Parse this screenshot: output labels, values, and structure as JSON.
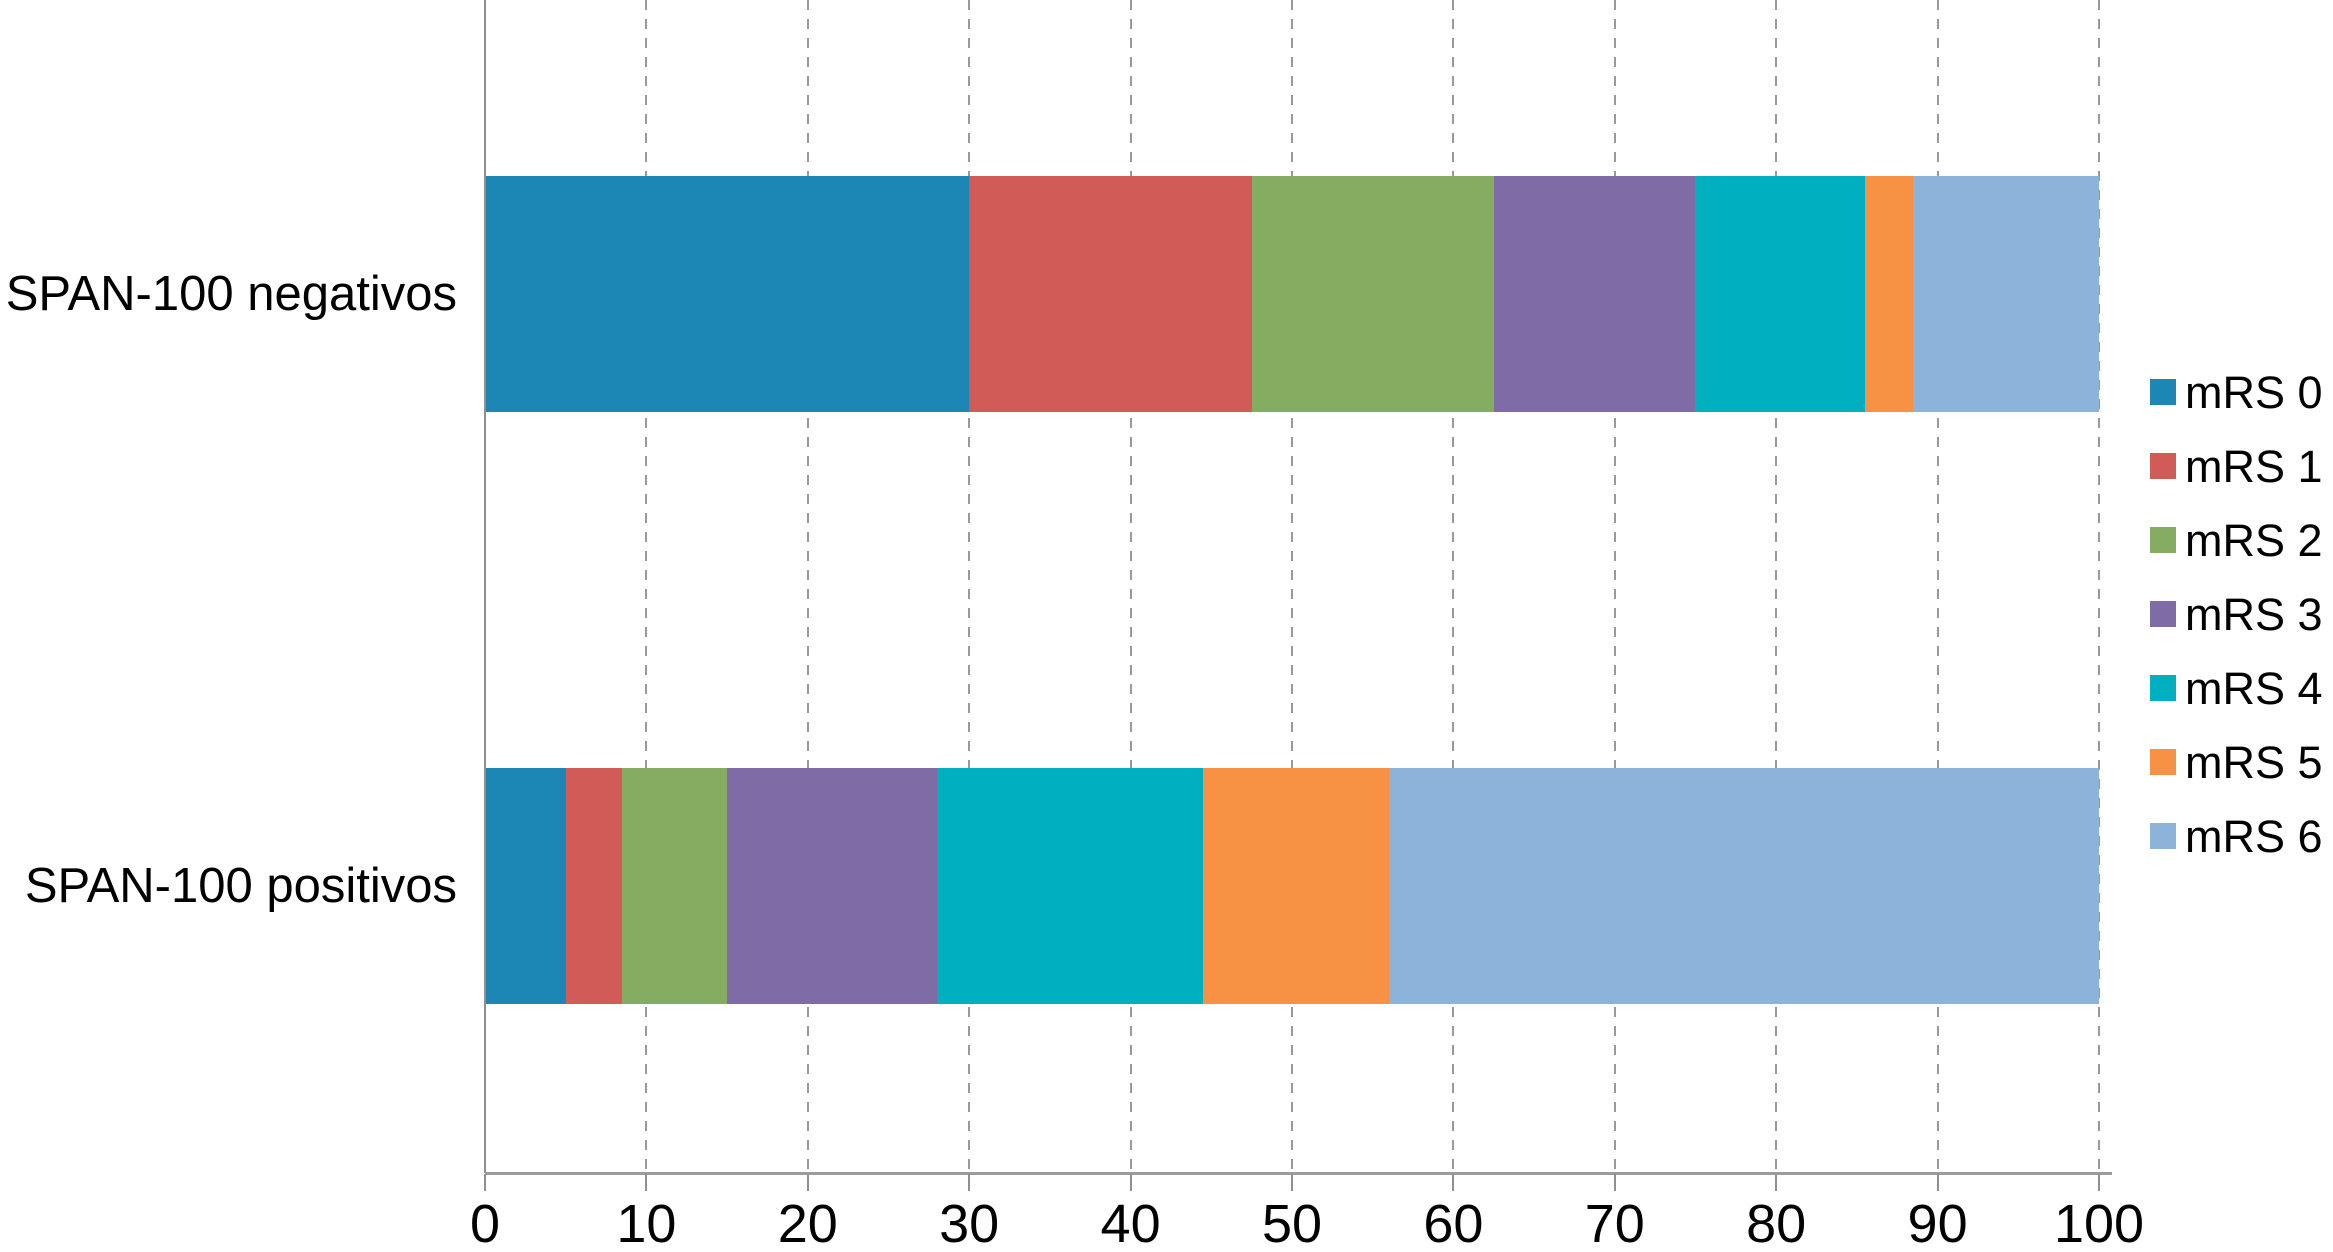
{
  "chart_data": {
    "type": "bar",
    "orientation": "horizontal",
    "stacked": true,
    "unit": "percent",
    "title": "",
    "xlabel": "",
    "ylabel": "",
    "categories": [
      "SPAN-100 negativos",
      "SPAN-100 positivos"
    ],
    "series": [
      {
        "name": "mRS 0",
        "color": "#1C87B5",
        "values": [
          30,
          5
        ]
      },
      {
        "name": "mRS 1",
        "color": "#D15B57",
        "values": [
          17.5,
          3.5
        ]
      },
      {
        "name": "mRS 2",
        "color": "#85AD61",
        "values": [
          15,
          6.5
        ]
      },
      {
        "name": "mRS 3",
        "color": "#7F6BA6",
        "values": [
          12.5,
          13
        ]
      },
      {
        "name": "mRS 4",
        "color": "#00AFC0",
        "values": [
          10.5,
          16.5
        ]
      },
      {
        "name": "mRS 5",
        "color": "#F79245",
        "values": [
          3,
          11.5
        ]
      },
      {
        "name": "mRS 6",
        "color": "#8CB4DB",
        "values": [
          11.5,
          44
        ]
      }
    ],
    "xlim": [
      0,
      100
    ],
    "xticks": [
      0,
      10,
      20,
      30,
      40,
      50,
      60,
      70,
      80,
      90,
      100
    ],
    "xtick_labels": [
      "0",
      "10",
      "20",
      "30",
      "40",
      "50",
      "60",
      "70",
      "80",
      "90",
      "100"
    ],
    "grid": "vertical-dashed",
    "legend_position": "right",
    "legend_labels": [
      "mRS 0",
      "mRS 1",
      "mRS 2",
      "mRS 3",
      "mRS 4",
      "mRS 5",
      "mRS 6"
    ],
    "axis_color": "#9b9b9b",
    "gridline_color": "#999999",
    "text_color": "#000000",
    "background_color": "#ffffff"
  }
}
